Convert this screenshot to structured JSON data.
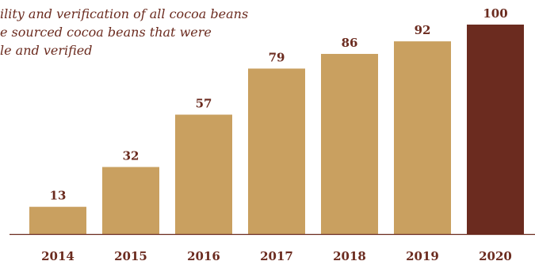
{
  "caption": {
    "lines": [
      "ility and verification of all cocoa beans",
      "e sourced cocoa beans that were",
      "le and verified"
    ]
  },
  "colors": {
    "bar": "#c9a060",
    "highlight_bar": "#6b2b1f",
    "label": "#6b2b1f",
    "axis": "#6b2b1f"
  },
  "chart_data": {
    "type": "bar",
    "categories": [
      "2014",
      "2015",
      "2016",
      "2017",
      "2018",
      "2019",
      "2020"
    ],
    "values": [
      13,
      32,
      57,
      79,
      86,
      92,
      100
    ],
    "highlight_index": 6,
    "ylim": [
      0,
      100
    ],
    "grid": false,
    "data_labels": true
  }
}
